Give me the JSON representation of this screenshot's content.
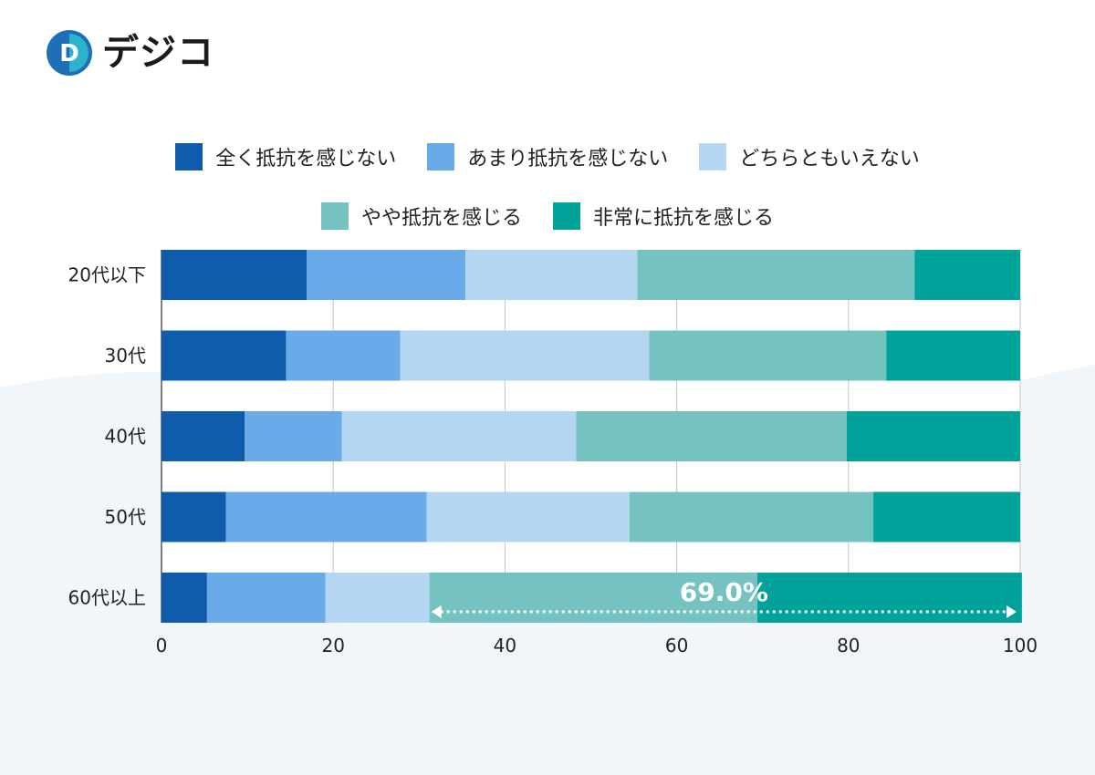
{
  "brand": {
    "name": "デジコ",
    "logo_letter": "D",
    "color": "#1e6fb8"
  },
  "chart_data": {
    "type": "bar",
    "orientation": "horizontal-stacked",
    "categories": [
      "20代以下",
      "30代",
      "40代",
      "50代",
      "60代以上"
    ],
    "series": [
      {
        "name": "全く抵抗を感じない",
        "color": "#0f5cad",
        "values": [
          16.9,
          14.5,
          9.7,
          7.5,
          5.3
        ]
      },
      {
        "name": "あまり抵抗を感じない",
        "color": "#6aaae8",
        "values": [
          18.5,
          13.3,
          11.3,
          23.4,
          13.8
        ]
      },
      {
        "name": "どちらともいえない",
        "color": "#b5d6f3",
        "values": [
          20.0,
          29.0,
          27.3,
          23.6,
          12.1
        ]
      },
      {
        "name": "やや抵抗を感じる",
        "color": "#74c3c0",
        "values": [
          32.3,
          27.6,
          31.5,
          28.4,
          38.2
        ]
      },
      {
        "name": "非常に抵抗を感じる",
        "color": "#00a29a",
        "values": [
          12.3,
          15.6,
          20.2,
          17.1,
          30.8
        ]
      }
    ],
    "xlim": [
      0,
      100
    ],
    "xticks": [
      "0",
      "20",
      "40",
      "60",
      "80",
      "100"
    ],
    "grid": true,
    "legend_position": "top",
    "annotation": {
      "text": "69.0%",
      "category": "60代以上",
      "from": 31.0,
      "to": 100
    }
  }
}
